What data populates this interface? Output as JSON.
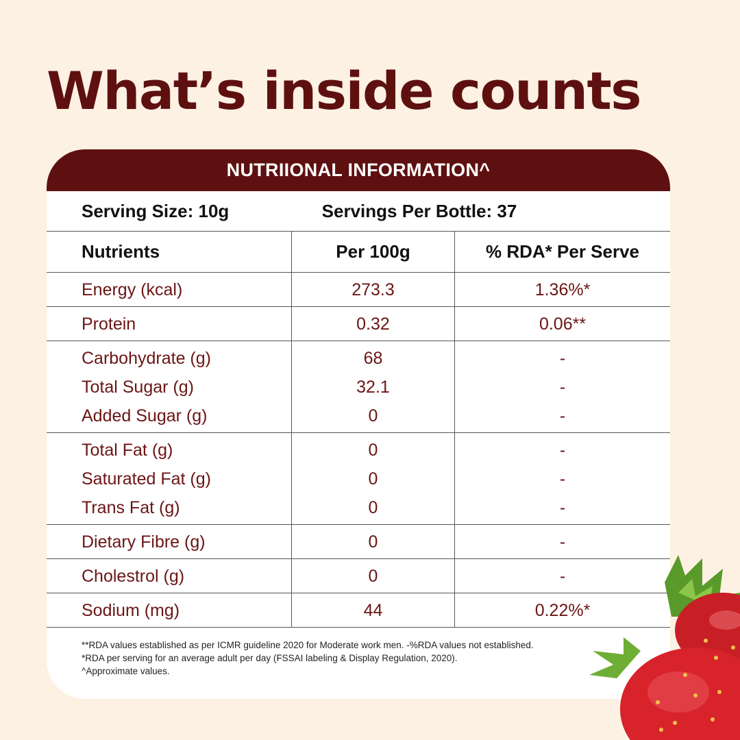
{
  "headline": "What’s inside counts",
  "table": {
    "header": "NUTRIIONAL INFORMATION^",
    "serving_size": "Serving Size: 10g",
    "servings_per_bottle": "Servings Per Bottle: 37",
    "columns": [
      "Nutrients",
      "Per 100g",
      "% RDA* Per Serve"
    ],
    "groups": [
      [
        {
          "nutrient": "Energy (kcal)",
          "per100g": "273.3",
          "rda": "1.36%*"
        }
      ],
      [
        {
          "nutrient": "Protein",
          "per100g": "0.32",
          "rda": "0.06**"
        }
      ],
      [
        {
          "nutrient": "Carbohydrate (g)",
          "per100g": "68",
          "rda": "-"
        },
        {
          "nutrient": "Total Sugar (g)",
          "per100g": "32.1",
          "rda": "-"
        },
        {
          "nutrient": "Added Sugar (g)",
          "per100g": "0",
          "rda": "-"
        }
      ],
      [
        {
          "nutrient": "Total Fat (g)",
          "per100g": "0",
          "rda": "-"
        },
        {
          "nutrient": "Saturated Fat (g)",
          "per100g": "0",
          "rda": "-"
        },
        {
          "nutrient": "Trans Fat (g)",
          "per100g": "0",
          "rda": "-"
        }
      ],
      [
        {
          "nutrient": "Dietary Fibre (g)",
          "per100g": "0",
          "rda": "-"
        }
      ],
      [
        {
          "nutrient": "Cholestrol (g)",
          "per100g": "0",
          "rda": "-"
        }
      ],
      [
        {
          "nutrient": "Sodium (mg)",
          "per100g": "44",
          "rda": "0.22%*"
        }
      ]
    ]
  },
  "footnotes": [
    "**RDA values established as per ICMR guideline 2020 for Moderate work men. -%RDA values not established.",
    "*RDA per serving for an average adult per day (FSSAI labeling & Display Regulation, 2020).",
    "^Approximate values."
  ],
  "colors": {
    "background": "#fdf1e3",
    "brand": "#5e1010",
    "card": "#ffffff",
    "strawberry": "#d8232a",
    "leaf": "#5a9a2a"
  },
  "decoration": "strawberry-image"
}
